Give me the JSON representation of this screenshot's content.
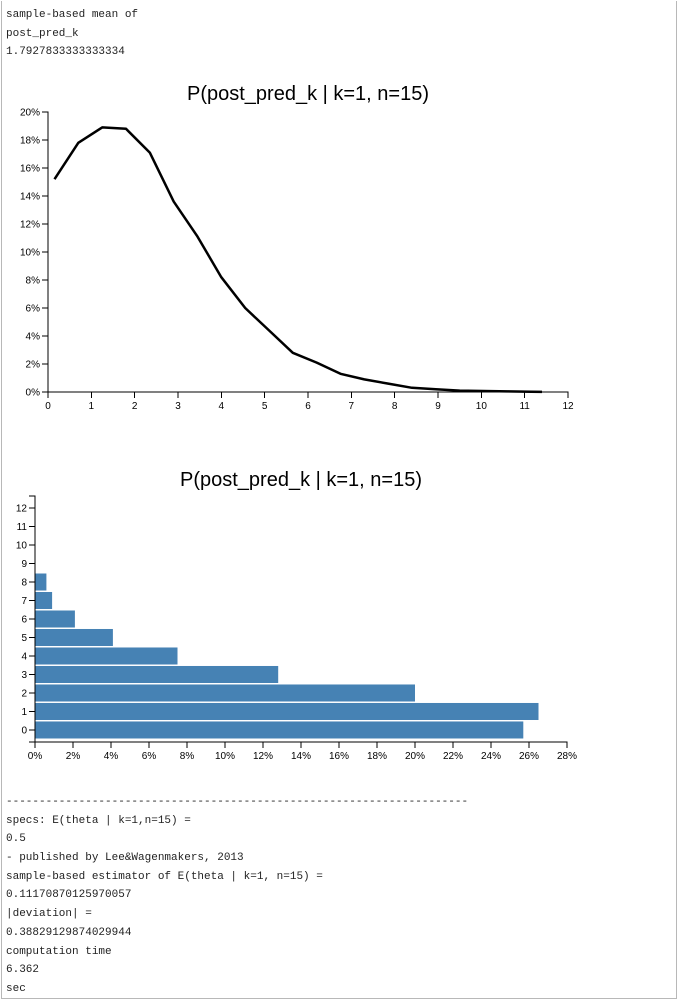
{
  "top_output": {
    "line1": "sample-based mean of",
    "line2": "post_pred_k",
    "line3": "1.7927833333333334"
  },
  "chart_data": [
    {
      "type": "line",
      "title": "P(post_pred_k | k=1, n=15)",
      "xlim": [
        0,
        12
      ],
      "ylim": [
        0,
        0.2
      ],
      "x_ticks": [
        "0",
        "1",
        "2",
        "3",
        "4",
        "5",
        "6",
        "7",
        "8",
        "9",
        "10",
        "11",
        "12"
      ],
      "y_ticks": [
        "0%",
        "2%",
        "4%",
        "6%",
        "8%",
        "10%",
        "12%",
        "14%",
        "16%",
        "18%",
        "20%"
      ],
      "x": [
        0.15,
        0.7,
        1.25,
        1.8,
        2.35,
        2.9,
        3.45,
        4.0,
        4.55,
        5.1,
        5.65,
        6.2,
        6.75,
        7.3,
        7.85,
        8.4,
        8.95,
        9.5,
        10.05,
        10.6,
        11.15,
        11.4
      ],
      "values": [
        0.152,
        0.178,
        0.189,
        0.188,
        0.171,
        0.136,
        0.111,
        0.082,
        0.06,
        0.044,
        0.028,
        0.021,
        0.013,
        0.009,
        0.006,
        0.003,
        0.002,
        0.001,
        0.0007,
        0.0004,
        0.0002,
        0.0001
      ],
      "grid": false,
      "color": "#000000"
    },
    {
      "type": "bar",
      "orientation": "horizontal",
      "title": "P(post_pred_k | k=1, n=15)",
      "categories": [
        "0",
        "1",
        "2",
        "3",
        "4",
        "5",
        "6",
        "7",
        "8",
        "9",
        "10",
        "11",
        "12"
      ],
      "values": [
        0.257,
        0.265,
        0.2,
        0.128,
        0.075,
        0.041,
        0.021,
        0.009,
        0.006,
        0,
        0,
        0,
        0
      ],
      "xlim": [
        0,
        0.28
      ],
      "x_ticks": [
        "0%",
        "2%",
        "4%",
        "6%",
        "8%",
        "10%",
        "12%",
        "14%",
        "16%",
        "18%",
        "20%",
        "22%",
        "24%",
        "26%",
        "28%"
      ],
      "grid": false,
      "color": "#4682b4"
    }
  ],
  "bottom_output": {
    "separator": "----------------------------------------------------------------------",
    "specs_label": "specs: E(theta | k=1,n=15) =",
    "specs_value": "0.5",
    "source": "- published by Lee&Wagenmakers, 2013",
    "estimator_label": "sample-based estimator of E(theta | k=1, n=15) =",
    "estimator_value": "0.11170870125970057",
    "deviation_label": "|deviation| =",
    "deviation_value": "0.38829129874029944",
    "time_label": "computation time",
    "time_value": "6.362",
    "time_unit": "sec"
  }
}
